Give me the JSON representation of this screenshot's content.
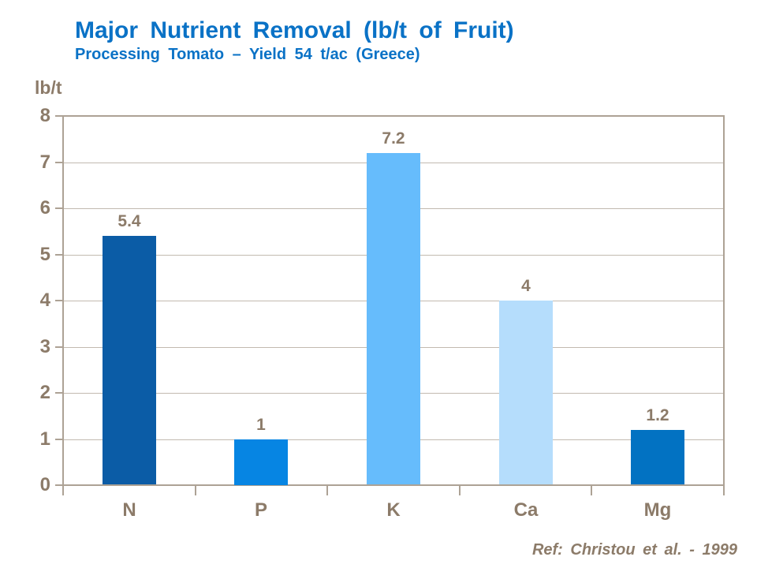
{
  "header": {
    "title_ref": "see chart_data.title",
    "subtitle_ref": "see chart_data.subtitle"
  },
  "colors": {
    "title_blue": "#0A72C6",
    "axis_text_brown": "#8C7B69",
    "frame": "#ADA295",
    "gridline": "#C2BAB0",
    "background": "#FFFFFF"
  },
  "chart_data": {
    "type": "bar",
    "title": "Major Nutrient Removal (lb/t of Fruit)",
    "subtitle": "Processing Tomato – Yield 54 t/ac (Greece)",
    "ylabel": "lb/t",
    "xlabel": "",
    "categories": [
      "N",
      "P",
      "K",
      "Ca",
      "Mg"
    ],
    "values": [
      5.4,
      1,
      7.2,
      4,
      1.2
    ],
    "value_labels": [
      "5.4",
      "1",
      "7.2",
      "4",
      "1.2"
    ],
    "bar_colors": [
      "#0B5CA6",
      "#0685E3",
      "#66BCFC",
      "#B5DDFC",
      "#0272C2"
    ],
    "ylim": [
      0,
      8
    ],
    "ytick_step": 1,
    "yticks": [
      "0",
      "1",
      "2",
      "3",
      "4",
      "5",
      "6",
      "7",
      "8"
    ],
    "grid": true,
    "legend": "none",
    "reference": "Ref: Christou et al. - 1999"
  }
}
